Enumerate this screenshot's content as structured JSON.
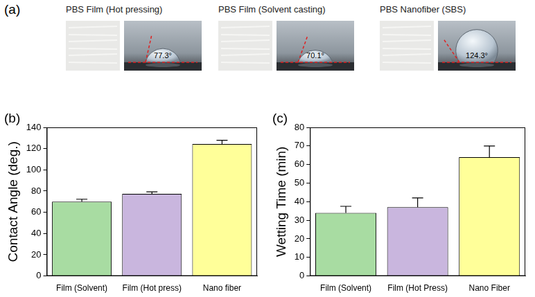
{
  "panel_a": {
    "label": "(a)",
    "samples": [
      {
        "name": "PBS Film (Hot pressing)",
        "contact_angle": {
          "value": 77.3,
          "label": "77.3°"
        }
      },
      {
        "name": "PBS Film (Solvent casting)",
        "contact_angle": {
          "value": 70.1,
          "label": "70.1°"
        }
      },
      {
        "name": "PBS Nanofiber (SBS)",
        "contact_angle": {
          "value": 124.3,
          "label": "124.3°"
        }
      }
    ]
  },
  "chart_data": [
    {
      "type": "bar",
      "panel": "(b)",
      "categories": [
        "Film (Solvent)",
        "Film (Hot press)",
        "Nano fiber"
      ],
      "values": [
        70.1,
        77.3,
        124.3
      ],
      "errors": [
        2.2,
        2,
        3.5
      ],
      "colors": [
        "#a8dca2",
        "#c9b6de",
        "#ffff99"
      ],
      "y_label": "Contact Angle (deg.)",
      "ylim": [
        0,
        140
      ],
      "yticks": [
        0,
        20,
        40,
        60,
        80,
        100,
        120,
        140
      ],
      "grid": false
    },
    {
      "type": "bar",
      "panel": "(c)",
      "categories": [
        "Film (Solvent)",
        "Film (Hot Press)",
        "Nano Fiber"
      ],
      "values": [
        34,
        37,
        64
      ],
      "errors": [
        3.5,
        5,
        6
      ],
      "colors": [
        "#a8dca2",
        "#c9b6de",
        "#ffff99"
      ],
      "y_label": "Wetting Time (min)",
      "ylim": [
        0,
        80
      ],
      "yticks": [
        0,
        10,
        20,
        30,
        40,
        50,
        60,
        70,
        80
      ],
      "grid": false
    }
  ]
}
